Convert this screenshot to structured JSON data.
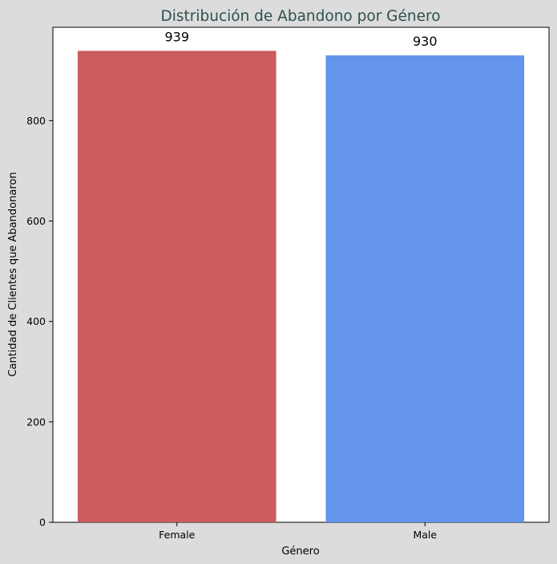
{
  "chart_data": {
    "type": "bar",
    "title": "Distribución de Abandono por Género",
    "xlabel": "Género",
    "ylabel": "Cantidad de Clientes que Abandonaron",
    "categories": [
      "Female",
      "Male"
    ],
    "values": [
      939,
      930
    ],
    "data_labels": [
      "939",
      "930"
    ],
    "bar_colors": [
      "#cd5c5c",
      "#6495ed"
    ],
    "ylim": [
      0,
      985.95
    ],
    "yticks": [
      0,
      200,
      400,
      600,
      800
    ],
    "ytick_labels": [
      "0",
      "200",
      "400",
      "600",
      "800"
    ],
    "grid": false,
    "legend": "none",
    "title_color": "#2f4f4f",
    "background_color": "#dcdcdc",
    "plot_background_color": "#ffffff"
  }
}
